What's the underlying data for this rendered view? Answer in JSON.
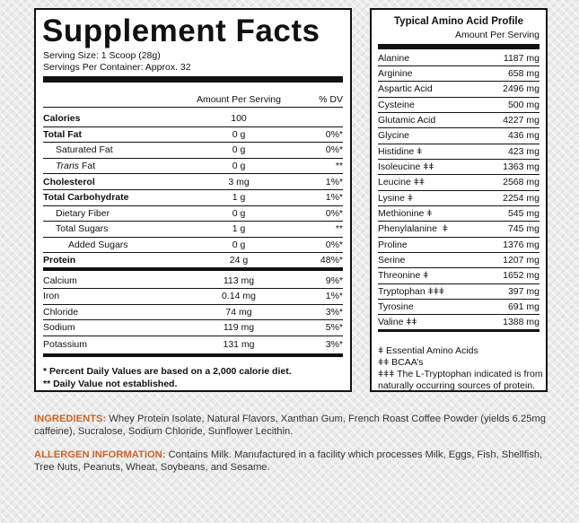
{
  "supplement_facts": {
    "title": "Supplement Facts",
    "serving_size": "Serving Size: 1 Scoop (28g)",
    "servings_per_container": "Servings Per Container: Approx. 32",
    "col_amount": "Amount Per Serving",
    "col_dv": "% DV",
    "rows": [
      {
        "name": "Calories",
        "amount": "100",
        "dv": "",
        "bold": true,
        "indent": 0
      },
      {
        "name": "Total Fat",
        "amount": "0 g",
        "dv": "0%*",
        "bold": true,
        "indent": 0
      },
      {
        "name": "Saturated Fat",
        "amount": "0 g",
        "dv": "0%*",
        "bold": false,
        "indent": 1
      },
      {
        "name_italic": "Trans",
        "name_rest": " Fat",
        "amount": "0 g",
        "dv": "**",
        "bold": false,
        "indent": 1
      },
      {
        "name": "Cholesterol",
        "amount": "3 mg",
        "dv": "1%*",
        "bold": true,
        "indent": 0
      },
      {
        "name": "Total Carbohydrate",
        "amount": "1 g",
        "dv": "1%*",
        "bold": true,
        "indent": 0
      },
      {
        "name": "Dietary Fiber",
        "amount": "0 g",
        "dv": "0%*",
        "bold": false,
        "indent": 1
      },
      {
        "name": "Total Sugars",
        "amount": "1 g",
        "dv": "**",
        "bold": false,
        "indent": 1
      },
      {
        "name": "Added Sugars",
        "amount": "0 g",
        "dv": "0%*",
        "bold": false,
        "indent": 2
      },
      {
        "name": "Protein",
        "amount": "24 g",
        "dv": "48%*",
        "bold": true,
        "indent": 0
      },
      {
        "name": "Calcium",
        "amount": "113 mg",
        "dv": "9%*",
        "bold": false,
        "indent": 0
      },
      {
        "name": "Iron",
        "amount": "0.14 mg",
        "dv": "1%*",
        "bold": false,
        "indent": 0
      },
      {
        "name": "Chloride",
        "amount": "74 mg",
        "dv": "3%*",
        "bold": false,
        "indent": 0
      },
      {
        "name": "Sodium",
        "amount": "119 mg",
        "dv": "5%*",
        "bold": false,
        "indent": 0
      },
      {
        "name": "Potassium",
        "amount": "131 mg",
        "dv": "3%*",
        "bold": false,
        "indent": 0
      }
    ],
    "footnote_1": "* Percent Daily Values are based on a 2,000 calorie diet.",
    "footnote_2": "** Daily Value not established."
  },
  "amino_profile": {
    "title": "Typical Amino Acid Profile",
    "subtitle": "Amount Per Serving",
    "rows": [
      {
        "name": "Alanine",
        "amount": "1187 mg"
      },
      {
        "name": "Arginine",
        "amount": "658 mg"
      },
      {
        "name": "Aspartic Acid",
        "amount": "2496 mg"
      },
      {
        "name": "Cysteine",
        "amount": "500 mg"
      },
      {
        "name": "Glutamic Acid",
        "amount": "4227 mg"
      },
      {
        "name": "Glycine",
        "amount": "436 mg"
      },
      {
        "name": "Histidine ǂ",
        "amount": "423 mg"
      },
      {
        "name": "Isoleucine ǂǂ",
        "amount": "1363 mg"
      },
      {
        "name": "Leucine ǂǂ",
        "amount": "2568 mg"
      },
      {
        "name": "Lysine ǂ",
        "amount": "2254 mg"
      },
      {
        "name": "Methionine ǂ",
        "amount": "545 mg"
      },
      {
        "name": "Phenylalanine  ǂ",
        "amount": "745 mg"
      },
      {
        "name": "Proline",
        "amount": "1376 mg"
      },
      {
        "name": "Serine",
        "amount": "1207 mg"
      },
      {
        "name": "Threonine ǂ",
        "amount": "1652 mg"
      },
      {
        "name": "Tryptophan ǂǂǂ",
        "amount": "397 mg"
      },
      {
        "name": "Tyrosine",
        "amount": "691 mg"
      },
      {
        "name": "Valine ǂǂ",
        "amount": "1388 mg"
      }
    ],
    "note_1": "ǂ Essential Amino Acids",
    "note_2": "ǂǂ BCAA’s",
    "note_3": "ǂǂǂ The L-Tryptophan indicated is from",
    "note_4": "naturally occurring sources of protein."
  },
  "ingredients": {
    "label": "INGREDIENTS:",
    "text": " Whey Protein Isolate, Natural Flavors, Xanthan Gum, French Roast Coffee Powder (yields 6.25mg caffeine), Sucralose, Sodium Chloride, Sunflower Lecithin."
  },
  "allergen": {
    "label": "ALLERGEN INFORMATION:",
    "text": " Contains Milk. Manufactured in a facility which processes Milk, Eggs, Fish, Shellfish, Tree Nuts, Peanuts, Wheat, Soybeans, and Sesame."
  },
  "colors": {
    "label_accent": "#c86428",
    "border": "#111111",
    "background": "#ececec"
  }
}
